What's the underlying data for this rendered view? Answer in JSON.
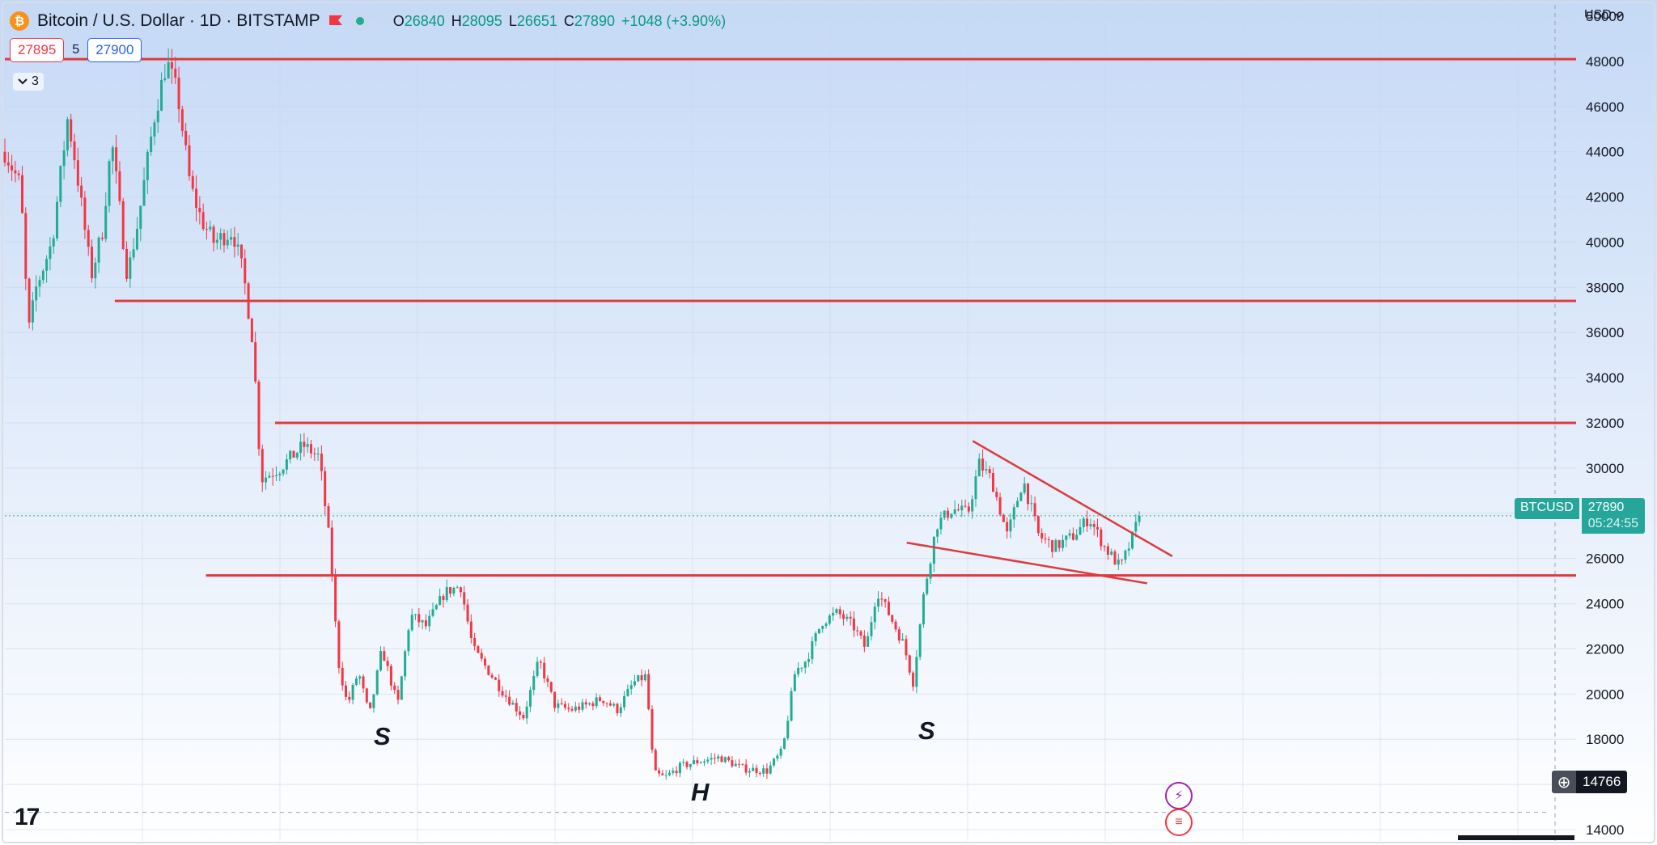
{
  "header": {
    "title": "Bitcoin / U.S. Dollar · 1D · BITSTAMP",
    "logo_text": "₿",
    "ohlc": [
      {
        "k": "O",
        "v": "26840"
      },
      {
        "k": "H",
        "v": "28095"
      },
      {
        "k": "L",
        "v": "26651"
      },
      {
        "k": "C",
        "v": "27890"
      },
      {
        "k": "",
        "v": "+1048 (+3.90%)"
      }
    ]
  },
  "quote": {
    "bid": "27895",
    "spread": "5",
    "ask": "27900"
  },
  "indicators_chip": {
    "count": "3"
  },
  "currency": "USD",
  "last_price": {
    "symbol": "BTCUSD",
    "price": "27890",
    "countdown": "05:24:55"
  },
  "crosshair": {
    "price": "14766"
  },
  "brand": {
    "logo": "17"
  },
  "colors": {
    "up": "#22ab94",
    "down": "#f23645",
    "level_line": "#dd3b3f",
    "bg_top": "#c5d9f6",
    "bg_bottom": "#ffffff",
    "axis_text": "#131722"
  },
  "pattern_labels": {
    "left_shoulder": "S",
    "head": "H",
    "right_shoulder": "S"
  },
  "event_icons": [
    "lightning-icon",
    "us-flag-icon"
  ],
  "chart_data": {
    "type": "candlestick",
    "title": "Bitcoin / U.S. Dollar · 1D · BITSTAMP",
    "xlabel": "",
    "ylabel": "",
    "ylim": [
      13500,
      50500
    ],
    "y_ticks": [
      14000,
      16000,
      18000,
      20000,
      22000,
      24000,
      26000,
      28000,
      30000,
      32000,
      34000,
      36000,
      38000,
      40000,
      42000,
      44000,
      46000,
      48000,
      50000
    ],
    "grid": true,
    "last_close": 27890,
    "horizontal_levels": [
      48100,
      37400,
      32000,
      25250
    ],
    "trendlines": [
      {
        "from": [
          0.616,
          31200
        ],
        "to": [
          0.743,
          26100
        ]
      },
      {
        "from": [
          0.574,
          26700
        ],
        "to": [
          0.727,
          24900
        ]
      }
    ],
    "price_path": [
      [
        0.0,
        44000
      ],
      [
        0.01,
        42500
      ],
      [
        0.015,
        36000
      ],
      [
        0.02,
        38000
      ],
      [
        0.03,
        40000
      ],
      [
        0.04,
        45500
      ],
      [
        0.045,
        43500
      ],
      [
        0.055,
        38500
      ],
      [
        0.062,
        40500
      ],
      [
        0.068,
        44500
      ],
      [
        0.078,
        38500
      ],
      [
        0.085,
        41000
      ],
      [
        0.095,
        45500
      ],
      [
        0.103,
        48000
      ],
      [
        0.11,
        46500
      ],
      [
        0.118,
        42500
      ],
      [
        0.125,
        41000
      ],
      [
        0.133,
        40000
      ],
      [
        0.145,
        40500
      ],
      [
        0.152,
        38500
      ],
      [
        0.158,
        35500
      ],
      [
        0.163,
        29500
      ],
      [
        0.175,
        30000
      ],
      [
        0.19,
        31000
      ],
      [
        0.2,
        30500
      ],
      [
        0.207,
        26500
      ],
      [
        0.212,
        21500
      ],
      [
        0.218,
        19500
      ],
      [
        0.225,
        21000
      ],
      [
        0.232,
        19000
      ],
      [
        0.24,
        22000
      ],
      [
        0.25,
        19500
      ],
      [
        0.258,
        23500
      ],
      [
        0.268,
        23000
      ],
      [
        0.28,
        24500
      ],
      [
        0.29,
        24800
      ],
      [
        0.298,
        22000
      ],
      [
        0.308,
        21000
      ],
      [
        0.318,
        20000
      ],
      [
        0.33,
        19000
      ],
      [
        0.34,
        21500
      ],
      [
        0.35,
        19500
      ],
      [
        0.36,
        19300
      ],
      [
        0.37,
        19500
      ],
      [
        0.38,
        19800
      ],
      [
        0.39,
        19300
      ],
      [
        0.4,
        20500
      ],
      [
        0.408,
        20800
      ],
      [
        0.413,
        16500
      ],
      [
        0.42,
        16300
      ],
      [
        0.43,
        16800
      ],
      [
        0.44,
        17000
      ],
      [
        0.455,
        17200
      ],
      [
        0.47,
        16700
      ],
      [
        0.485,
        16600
      ],
      [
        0.495,
        17500
      ],
      [
        0.503,
        21000
      ],
      [
        0.51,
        21500
      ],
      [
        0.52,
        23200
      ],
      [
        0.53,
        23600
      ],
      [
        0.54,
        23000
      ],
      [
        0.548,
        22000
      ],
      [
        0.555,
        24600
      ],
      [
        0.563,
        23500
      ],
      [
        0.572,
        22200
      ],
      [
        0.578,
        20500
      ],
      [
        0.585,
        24500
      ],
      [
        0.593,
        27500
      ],
      [
        0.603,
        28200
      ],
      [
        0.613,
        28000
      ],
      [
        0.62,
        30200
      ],
      [
        0.628,
        29500
      ],
      [
        0.638,
        27000
      ],
      [
        0.648,
        29500
      ],
      [
        0.658,
        27000
      ],
      [
        0.668,
        26500
      ],
      [
        0.68,
        27000
      ],
      [
        0.69,
        27800
      ],
      [
        0.7,
        26500
      ],
      [
        0.71,
        25600
      ],
      [
        0.717,
        26800
      ],
      [
        0.722,
        27890
      ]
    ]
  }
}
